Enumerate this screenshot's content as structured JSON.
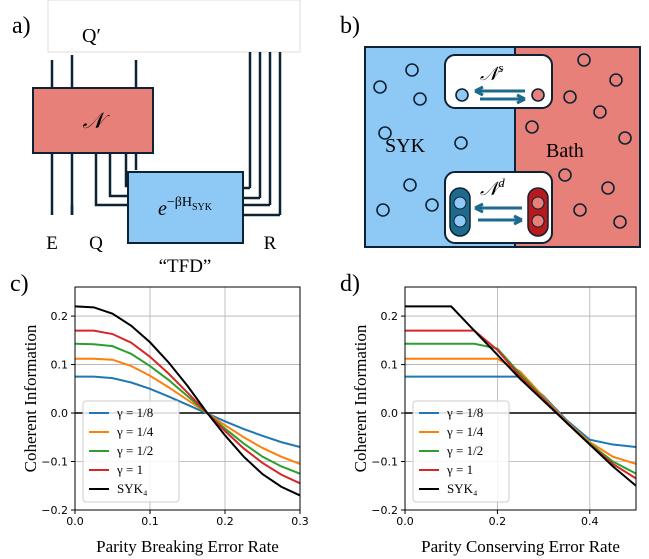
{
  "panel_a": {
    "label": "a)",
    "top_label": "Q′",
    "channel": "𝒩",
    "state": {
      "base": "e",
      "exponent": "−βH",
      "subscript": "SYK"
    },
    "wire_labels": [
      "E",
      "Q",
      "R"
    ],
    "state_caption": "“TFD”"
  },
  "panel_b": {
    "label": "b)",
    "left": "SYK",
    "right": "Bath",
    "single_channel": {
      "symbol": "𝒩",
      "sup": "s"
    },
    "double_channel": {
      "symbol": "𝒩",
      "sup": "d"
    }
  },
  "chart_data": [
    {
      "type": "line",
      "label": "c)",
      "xlabel": "Parity Breaking Error Rate",
      "ylabel": "Coherent Information",
      "x": [
        0,
        0.025,
        0.05,
        0.075,
        0.1,
        0.125,
        0.15,
        0.175,
        0.2,
        0.225,
        0.25,
        0.275,
        0.3
      ],
      "series": [
        {
          "name": "γ = 1/8",
          "color": "#1f77b4",
          "values": [
            0.075,
            0.075,
            0.072,
            0.063,
            0.05,
            0.034,
            0.017,
            0.0,
            -0.017,
            -0.033,
            -0.047,
            -0.06,
            -0.07
          ]
        },
        {
          "name": "γ = 1/4",
          "color": "#ff7f0e",
          "values": [
            0.112,
            0.112,
            0.11,
            0.097,
            0.077,
            0.053,
            0.027,
            0.001,
            -0.025,
            -0.05,
            -0.072,
            -0.09,
            -0.105
          ]
        },
        {
          "name": "γ = 1/2",
          "color": "#2ca02c",
          "values": [
            0.143,
            0.142,
            0.138,
            0.122,
            0.097,
            0.068,
            0.035,
            0.001,
            -0.032,
            -0.063,
            -0.09,
            -0.11,
            -0.125
          ]
        },
        {
          "name": "γ = 1",
          "color": "#d62728",
          "values": [
            0.17,
            0.17,
            0.163,
            0.145,
            0.116,
            0.081,
            0.042,
            0.002,
            -0.037,
            -0.073,
            -0.103,
            -0.127,
            -0.145
          ]
        },
        {
          "name": "SYK₄",
          "color": "#000000",
          "values": [
            0.22,
            0.218,
            0.205,
            0.18,
            0.146,
            0.104,
            0.056,
            0.003,
            -0.046,
            -0.09,
            -0.126,
            -0.152,
            -0.17
          ]
        }
      ],
      "xlim": [
        0,
        0.3
      ],
      "ylim": [
        -0.2,
        0.26
      ],
      "xticks": [
        {
          "value": 0,
          "label": "0.0"
        },
        0.1,
        0.2,
        0.3
      ],
      "yticks": [
        {
          "value": -0.2,
          "label": "−0.2"
        },
        {
          "value": -0.1,
          "label": "−0.1"
        },
        {
          "value": 0,
          "label": "0.0"
        },
        0.1,
        0.2
      ],
      "hline": 0,
      "grid": true,
      "legend": "lower left"
    },
    {
      "type": "line",
      "label": "d)",
      "xlabel": "Parity Conserving Error Rate",
      "ylabel": "Coherent Information",
      "x": [
        0,
        0.05,
        0.1,
        0.15,
        0.2,
        0.25,
        0.3,
        0.35,
        0.4,
        0.45,
        0.5
      ],
      "series": [
        {
          "name": "γ = 1/8",
          "color": "#1f77b4",
          "values": [
            0.075,
            0.075,
            0.075,
            0.075,
            0.075,
            0.075,
            0.035,
            -0.015,
            -0.055,
            -0.065,
            -0.07
          ]
        },
        {
          "name": "γ = 1/4",
          "color": "#ff7f0e",
          "values": [
            0.112,
            0.112,
            0.112,
            0.112,
            0.112,
            0.085,
            0.033,
            -0.018,
            -0.06,
            -0.09,
            -0.105
          ]
        },
        {
          "name": "γ = 1/2",
          "color": "#2ca02c",
          "values": [
            0.143,
            0.143,
            0.143,
            0.143,
            0.133,
            0.08,
            0.03,
            -0.02,
            -0.063,
            -0.1,
            -0.125
          ]
        },
        {
          "name": "γ = 1",
          "color": "#d62728",
          "values": [
            0.17,
            0.17,
            0.17,
            0.17,
            0.13,
            0.075,
            0.028,
            -0.02,
            -0.065,
            -0.105,
            -0.135
          ]
        },
        {
          "name": "SYK₄",
          "color": "#000000",
          "values": [
            0.22,
            0.22,
            0.22,
            0.17,
            0.12,
            0.07,
            0.025,
            -0.02,
            -0.065,
            -0.11,
            -0.15
          ]
        }
      ],
      "xlim": [
        0,
        0.5
      ],
      "ylim": [
        -0.2,
        0.26
      ],
      "xticks": [
        {
          "value": 0,
          "label": "0.0"
        },
        0.2,
        0.4
      ],
      "yticks": [
        {
          "value": -0.2,
          "label": "−0.2"
        },
        {
          "value": -0.1,
          "label": "−0.1"
        },
        {
          "value": 0,
          "label": "0.0"
        },
        0.1,
        0.2
      ],
      "hline": 0,
      "grid": true,
      "legend": "lower left"
    }
  ]
}
